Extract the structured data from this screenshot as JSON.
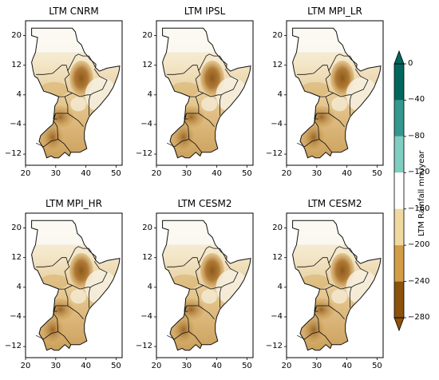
{
  "chart_data": {
    "type": "heatmap",
    "panels": [
      {
        "title": "LTM CNRM"
      },
      {
        "title": "LTM IPSL"
      },
      {
        "title": "LTM MPI_LR"
      },
      {
        "title": "LTM MPI_HR"
      },
      {
        "title": "LTM CESM2"
      },
      {
        "title": "LTM CESM2"
      }
    ],
    "xlim": [
      20,
      52
    ],
    "ylim": [
      -15,
      24
    ],
    "x_ticks": [
      "20",
      "30",
      "40",
      "50"
    ],
    "y_ticks": [
      "20",
      "12",
      "4",
      "−4",
      "−12"
    ],
    "x_tick_values": [
      20,
      30,
      40,
      50
    ],
    "y_tick_values": [
      20,
      12,
      4,
      -4,
      -12
    ],
    "colorbar": {
      "label": "LTM Rainfall mm/year",
      "ticks": [
        "0",
        "−40",
        "−80",
        "−120",
        "−160",
        "−200",
        "−240",
        "−280"
      ],
      "tick_values": [
        0,
        -40,
        -80,
        -120,
        -160,
        -200,
        -240,
        -280
      ],
      "bins": [
        {
          "from": 0,
          "to": -40,
          "color": "#01665e"
        },
        {
          "from": -40,
          "to": -80,
          "color": "#35978f"
        },
        {
          "from": -80,
          "to": -120,
          "color": "#80cdc1"
        },
        {
          "from": -120,
          "to": -160,
          "color": "#ffffff"
        },
        {
          "from": -160,
          "to": -200,
          "color": "#f0d99f"
        },
        {
          "from": -200,
          "to": -240,
          "color": "#d39c46"
        },
        {
          "from": -240,
          "to": -280,
          "color": "#8c510a"
        }
      ],
      "extend": "both"
    }
  }
}
